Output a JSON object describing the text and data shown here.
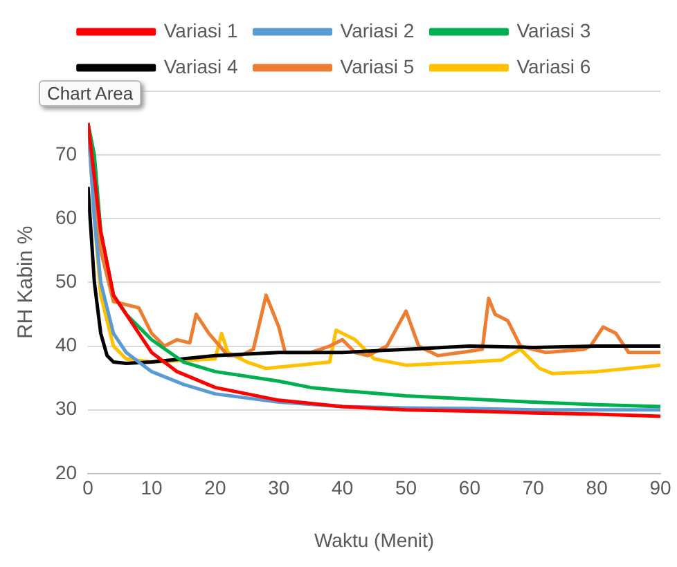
{
  "chart_data": {
    "type": "line",
    "xlabel": "Waktu (Menit)",
    "ylabel": "RH Kabin %",
    "annotations": [
      "Chart Area"
    ],
    "xlim": [
      0,
      90
    ],
    "xticks": [
      0,
      10,
      20,
      30,
      40,
      50,
      60,
      70,
      80,
      90
    ],
    "ylim": [
      20,
      80
    ],
    "yticks": [
      20,
      30,
      40,
      50,
      60,
      70,
      {
        "value": 80,
        "label": null
      }
    ],
    "grid": "y",
    "legend": "top",
    "marker": "none",
    "line_style": "solid",
    "series": [
      {
        "name": "Variasi 1",
        "color": "#ff0000",
        "x": [
          0,
          2,
          4,
          6,
          8,
          10,
          14,
          20,
          30,
          40,
          50,
          60,
          70,
          80,
          90
        ],
        "values": [
          75,
          58,
          48,
          45,
          42,
          39,
          36,
          33.5,
          31.5,
          30.5,
          30,
          29.8,
          29.5,
          29.3,
          29
        ]
      },
      {
        "name": "Variasi 2",
        "color": "#5b9bd5",
        "x": [
          0,
          1,
          2,
          4,
          6,
          10,
          15,
          20,
          30,
          40,
          50,
          60,
          70,
          80,
          90
        ],
        "values": [
          75,
          60,
          50,
          42,
          39,
          36,
          34,
          32.5,
          31.2,
          30.5,
          30.3,
          30.2,
          30,
          30,
          30
        ]
      },
      {
        "name": "Variasi 3",
        "color": "#00b050",
        "x": [
          0,
          1,
          2,
          4,
          6,
          10,
          15,
          20,
          30,
          35,
          40,
          50,
          60,
          70,
          80,
          90
        ],
        "values": [
          75,
          70,
          58,
          48,
          45,
          41,
          37.5,
          36,
          34.5,
          33.5,
          33,
          32.2,
          31.7,
          31.2,
          30.8,
          30.5
        ]
      },
      {
        "name": "Variasi 4",
        "color": "#000000",
        "x": [
          0,
          1,
          2,
          3,
          4,
          6,
          10,
          20,
          30,
          40,
          50,
          60,
          70,
          80,
          90
        ],
        "values": [
          65,
          50,
          42,
          38.5,
          37.5,
          37.3,
          37.5,
          38.5,
          39,
          39,
          39.5,
          40,
          39.8,
          40,
          40
        ]
      },
      {
        "name": "Variasi 5",
        "color": "#ed7d31",
        "x": [
          0,
          2,
          4,
          6,
          8,
          10,
          12,
          14,
          16,
          17,
          19,
          22,
          24,
          26,
          28,
          30,
          31,
          35,
          38,
          40,
          42,
          44,
          47,
          50,
          52,
          55,
          60,
          62,
          63,
          64,
          66,
          68,
          72,
          78,
          79,
          81,
          83,
          85,
          88,
          90
        ],
        "values": [
          75,
          55,
          47,
          46.5,
          46,
          42,
          40,
          41,
          40.5,
          45,
          42,
          38.5,
          38.5,
          39.5,
          48,
          43,
          39,
          39,
          40,
          41,
          39,
          38.5,
          40,
          45.5,
          40,
          38.5,
          39.2,
          39.5,
          47.5,
          45,
          44,
          40,
          39,
          39.5,
          40,
          43,
          42,
          39,
          39,
          39
        ]
      },
      {
        "name": "Variasi 6",
        "color": "#ffc000",
        "x": [
          0,
          1,
          2,
          4,
          6,
          10,
          20,
          21,
          22,
          25,
          28,
          33,
          38,
          39,
          42,
          45,
          50,
          60,
          65,
          68,
          71,
          73,
          80,
          90
        ],
        "values": [
          75,
          60,
          48,
          40,
          38,
          37.5,
          38,
          42,
          39,
          37.5,
          36.5,
          37,
          37.5,
          42.5,
          41,
          38,
          37,
          37.5,
          37.8,
          39.5,
          36.5,
          35.7,
          36,
          37
        ]
      }
    ]
  }
}
